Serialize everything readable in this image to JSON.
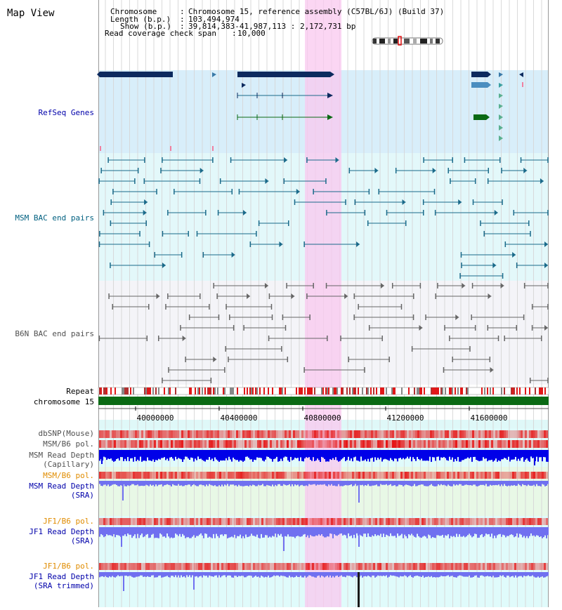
{
  "page_title": "Map View",
  "info": {
    "chromosome_label": "Chromosome",
    "chromosome_value": "Chromosome 15, reference assembly (C57BL/6J) (Build 37)",
    "length_label": "Length (b.p.)",
    "length_value": "103,494,974",
    "show_label": "Show (b.p.)",
    "show_value": "39,814,383-41,987,113 : 2,172,731 bp",
    "coverage_label": "Read coverage check span",
    "coverage_value": "10,000"
  },
  "tracks": {
    "refseq": "RefSeq Genes",
    "msm_bac": "MSM BAC end pairs",
    "b6n_bac": "B6N BAC end pairs",
    "repeat": "Repeat",
    "chromosome": "chromosome 15",
    "dbsnp": "dbSNP(Mouse)",
    "msm_b6_pol_1": "MSM/B6 pol.",
    "msm_read_depth_cap_1": "MSM Read Depth",
    "msm_read_depth_cap_2": "(Capillary)",
    "msm_b6_pol_2": "MSM/B6 pol.",
    "msm_read_depth_sra_1": "MSM Read Depth",
    "msm_read_depth_sra_2": "(SRA)",
    "jf1_b6_pol_1": "JF1/B6 pol.",
    "jf1_read_depth_sra_1": "JF1 Read Depth",
    "jf1_read_depth_sra_2": "(SRA)",
    "jf1_b6_pol_2": "JF1/B6 pol.",
    "jf1_read_depth_trim_1": "JF1 Read Depth",
    "jf1_read_depth_trim_2": "(SRA trimmed)"
  },
  "axis": {
    "ticks": [
      "40000000",
      "40400000",
      "40800000",
      "41200000",
      "41600000"
    ]
  },
  "colors": {
    "refseq_label": "#0000aa",
    "msm_label": "#006080",
    "b6n_label": "#505050",
    "orange_label": "#e08c00",
    "highlight": "#f9c8ef",
    "gene_dark": "#0c2a5e",
    "bac_msm": "#1a6a8a",
    "bac_b6n": "#666666",
    "chromosome_bar": "#0a6a14",
    "depth_capillary": "#0000e8",
    "depth_sra": "#7070f0"
  }
}
